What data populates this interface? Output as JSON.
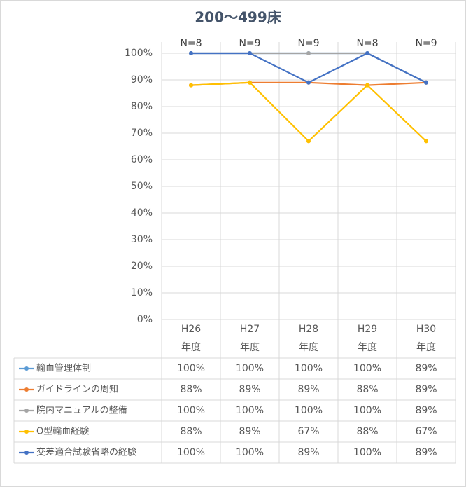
{
  "chart_data": {
    "type": "line",
    "title": "200～499床",
    "categories": [
      "H26\n年度",
      "H27\n年度",
      "H28\n年度",
      "H29\n年度",
      "H30\n年度"
    ],
    "n_labels": [
      "N=8",
      "N=9",
      "N=9",
      "N=8",
      "N=9"
    ],
    "ylim": [
      0,
      100
    ],
    "yticks": [
      {
        "value": 0,
        "label": "0%"
      },
      {
        "value": 10,
        "label": "10%"
      },
      {
        "value": 20,
        "label": "20%"
      },
      {
        "value": 30,
        "label": "30%"
      },
      {
        "value": 40,
        "label": "40%"
      },
      {
        "value": 50,
        "label": "50%"
      },
      {
        "value": 60,
        "label": "60%"
      },
      {
        "value": 70,
        "label": "70%"
      },
      {
        "value": 80,
        "label": "80%"
      },
      {
        "value": 90,
        "label": "90%"
      },
      {
        "value": 100,
        "label": "100%"
      }
    ],
    "grid": true,
    "series": [
      {
        "name": "輸血管理体制",
        "color": "#5b9bd5",
        "values": [
          100,
          100,
          100,
          100,
          89
        ],
        "value_labels": [
          "100%",
          "100%",
          "100%",
          "100%",
          "89%"
        ]
      },
      {
        "name": "ガイドラインの周知",
        "color": "#ed7d31",
        "values": [
          88,
          89,
          89,
          88,
          89
        ],
        "value_labels": [
          "88%",
          "89%",
          "89%",
          "88%",
          "89%"
        ]
      },
      {
        "name": "院内マニュアルの整備",
        "color": "#a5a5a5",
        "values": [
          100,
          100,
          100,
          100,
          89
        ],
        "value_labels": [
          "100%",
          "100%",
          "100%",
          "100%",
          "89%"
        ]
      },
      {
        "name": "O型輸血経験",
        "color": "#ffc000",
        "values": [
          88,
          89,
          67,
          88,
          67
        ],
        "value_labels": [
          "88%",
          "89%",
          "67%",
          "88%",
          "67%"
        ]
      },
      {
        "name": "交差適合試験省略の経験",
        "color": "#4472c4",
        "values": [
          100,
          100,
          89,
          100,
          89
        ],
        "value_labels": [
          "100%",
          "100%",
          "89%",
          "100%",
          "89%"
        ]
      }
    ]
  }
}
